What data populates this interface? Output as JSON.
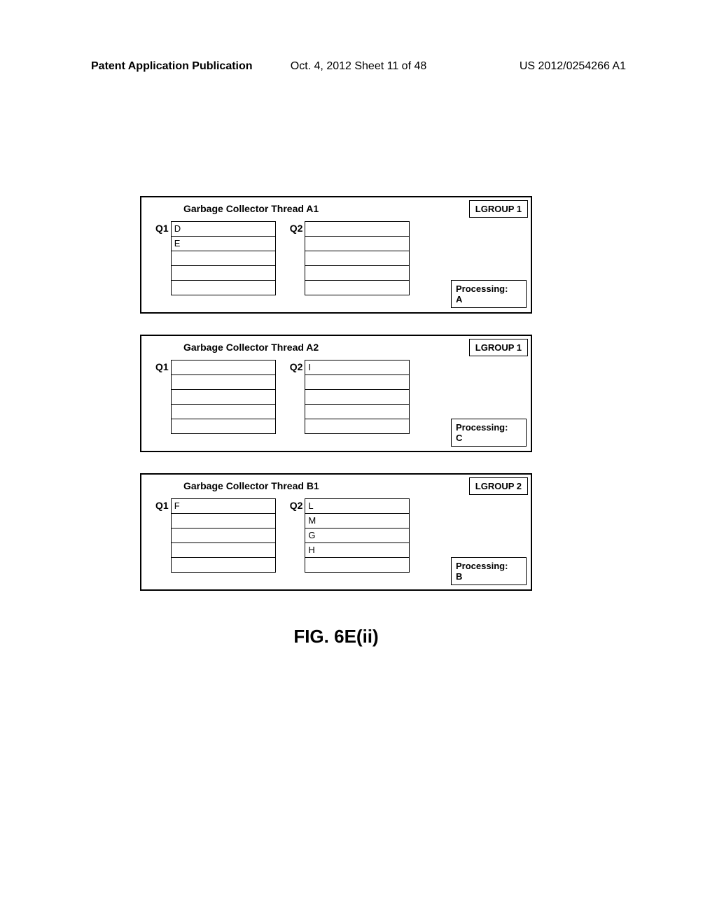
{
  "header": {
    "left": "Patent Application Publication",
    "center": "Oct. 4, 2012  Sheet 11 of 48",
    "right": "US 2012/0254266 A1"
  },
  "threads": [
    {
      "title": "Garbage Collector Thread A1",
      "lgroup": "LGROUP 1",
      "q1": [
        "D",
        "E",
        "",
        "",
        ""
      ],
      "q2": [
        "",
        "",
        "",
        "",
        ""
      ],
      "processing_label": "Processing:",
      "processing_value": "A"
    },
    {
      "title": "Garbage Collector Thread A2",
      "lgroup": "LGROUP 1",
      "q1": [
        "",
        "",
        "",
        "",
        ""
      ],
      "q2": [
        "I",
        "",
        "",
        "",
        ""
      ],
      "processing_label": "Processing:",
      "processing_value": "C"
    },
    {
      "title": "Garbage Collector Thread B1",
      "lgroup": "LGROUP 2",
      "q1": [
        "F",
        "",
        "",
        "",
        ""
      ],
      "q2": [
        "L",
        "M",
        "G",
        "H",
        ""
      ],
      "processing_label": "Processing:",
      "processing_value": "B"
    }
  ],
  "figure_caption": "FIG. 6E(ii)",
  "labels": {
    "q1": "Q1",
    "q2": "Q2"
  }
}
